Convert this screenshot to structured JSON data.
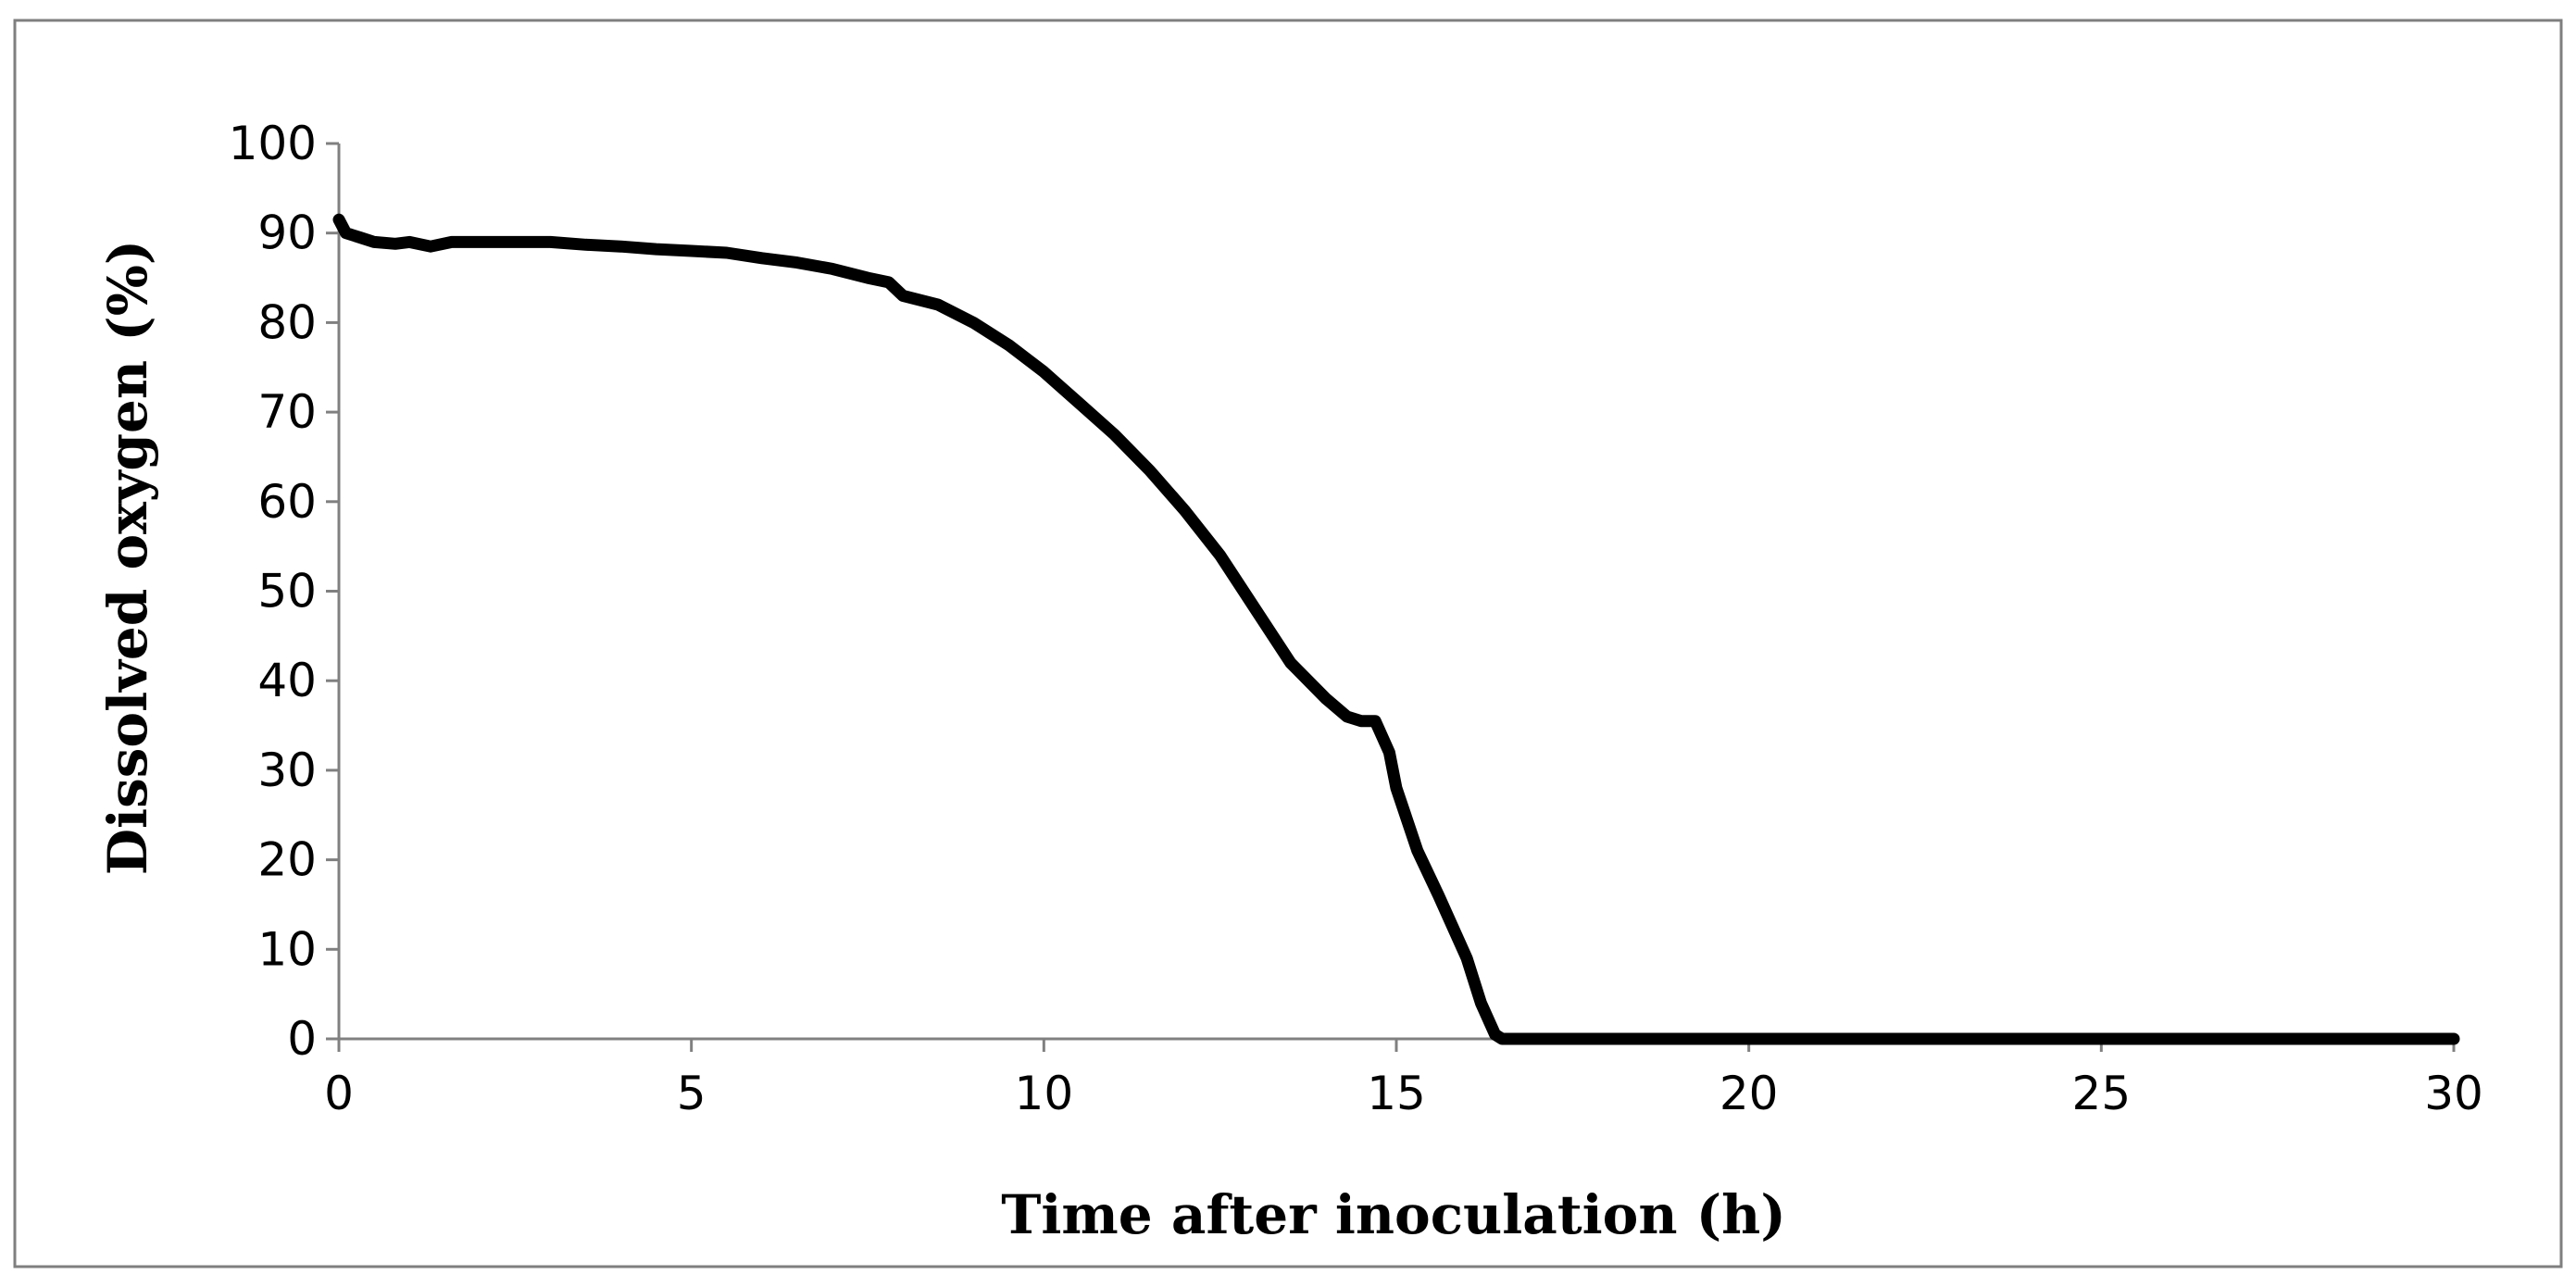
{
  "chart_data": {
    "type": "line",
    "title": "",
    "xlabel": "Time after inoculation (h)",
    "ylabel": "Dissolved oxygen (%)",
    "xlim": [
      0,
      30
    ],
    "ylim": [
      0,
      100
    ],
    "x_ticks": [
      "0",
      "5",
      "10",
      "15",
      "20",
      "25",
      "30"
    ],
    "y_ticks": [
      "0",
      "10",
      "20",
      "30",
      "40",
      "50",
      "60",
      "70",
      "80",
      "90",
      "100"
    ],
    "grid": false,
    "legend": "none",
    "series": [
      {
        "name": "Dissolved oxygen",
        "color": "#000000",
        "x": [
          0,
          0.1,
          0.3,
          0.5,
          0.8,
          1.0,
          1.3,
          1.6,
          2.0,
          2.5,
          3.0,
          3.5,
          4.0,
          4.5,
          5.0,
          5.5,
          6.0,
          6.5,
          7.0,
          7.5,
          7.8,
          8.0,
          8.5,
          9.0,
          9.5,
          10.0,
          10.5,
          11.0,
          11.5,
          12.0,
          12.5,
          13.0,
          13.5,
          14.0,
          14.3,
          14.5,
          14.7,
          14.9,
          15.0,
          15.3,
          15.6,
          16.0,
          16.2,
          16.4,
          16.5,
          17.0,
          18.0,
          20.0,
          25.0,
          30.0
        ],
        "y": [
          91.5,
          90,
          89.5,
          89,
          88.8,
          89,
          88.5,
          89,
          89,
          89,
          89,
          88.7,
          88.5,
          88.2,
          88,
          87.8,
          87.2,
          86.7,
          86,
          85,
          84.5,
          83,
          82,
          80,
          77.5,
          74.5,
          71,
          67.5,
          63.5,
          59,
          54,
          48,
          42,
          38,
          36,
          35.5,
          35.5,
          32,
          28,
          21,
          16,
          9,
          4,
          0.5,
          0,
          0,
          0,
          0,
          0,
          0
        ]
      }
    ]
  }
}
